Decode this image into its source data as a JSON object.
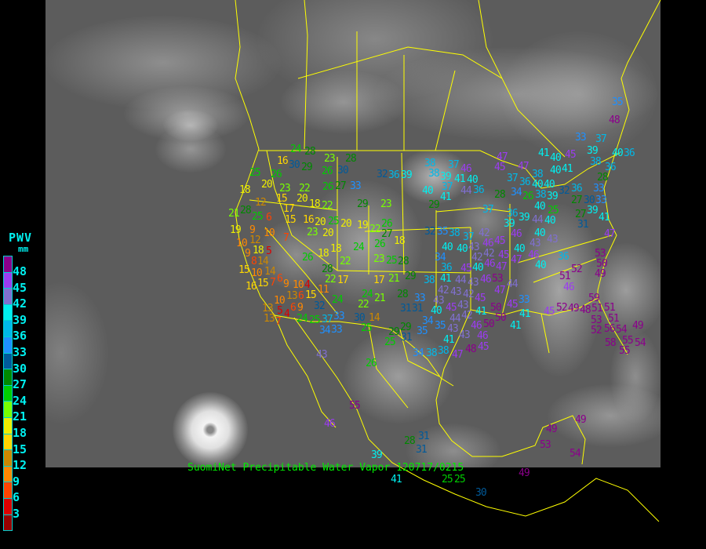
{
  "caption": "SuomiNet Precipitable Water Vapor 120717/0215",
  "legend": {
    "title": "PWV",
    "unit": "mm",
    "labels": [
      "48",
      "45",
      "42",
      "39",
      "36",
      "33",
      "30",
      "27",
      "24",
      "21",
      "18",
      "15",
      "12",
      "9",
      "6",
      "3"
    ],
    "colors": [
      "#8b008b",
      "#9b3cf0",
      "#8070d0",
      "#00f0f0",
      "#00b8e8",
      "#1e90ff",
      "#005a9a",
      "#008800",
      "#00cc00",
      "#77ff00",
      "#eeee00",
      "#ffd700",
      "#cc8800",
      "#ff8800",
      "#ff4400",
      "#dd0000",
      "#990000"
    ]
  },
  "map": {
    "border_color": "#ffff00",
    "background": "infrared satellite image",
    "features": [
      "hurricane-off-baja"
    ]
  },
  "stations": [
    "16",
    "30",
    "29",
    "24",
    "28",
    "23",
    "28",
    "26",
    "30",
    "25",
    "26",
    "20",
    "18",
    "23",
    "22",
    "26",
    "27",
    "33",
    "32",
    "36",
    "39",
    "15",
    "20",
    "12",
    "17",
    "18",
    "22",
    "29",
    "23",
    "21",
    "28",
    "25",
    "6",
    "15",
    "16",
    "20",
    "25",
    "20",
    "19",
    "22",
    "26",
    "27",
    "19",
    "9",
    "10",
    "23",
    "20",
    "7",
    "12",
    "18",
    "26",
    "24",
    "10",
    "18",
    "18",
    "9",
    "14",
    "5",
    "8",
    "26",
    "18",
    "22",
    "23",
    "25",
    "28",
    "15",
    "10",
    "14",
    "28",
    "22",
    "17",
    "17",
    "21",
    "29",
    "15",
    "16",
    "7",
    "6",
    "9",
    "10",
    "4",
    "11",
    "15",
    "6",
    "13",
    "24",
    "24",
    "21",
    "28",
    "10",
    "32",
    "22",
    "31",
    "13",
    "5",
    "4",
    "6",
    "9",
    "24",
    "13",
    "7",
    "25",
    "37",
    "34",
    "33",
    "30",
    "14",
    "33",
    "25",
    "29",
    "38",
    "37",
    "46",
    "38",
    "39",
    "37",
    "41",
    "40",
    "44",
    "36",
    "40",
    "41",
    "29",
    "45",
    "47",
    "47",
    "41",
    "45",
    "39",
    "38",
    "40",
    "37",
    "36",
    "38",
    "40",
    "40",
    "41",
    "36",
    "28",
    "33",
    "28",
    "34",
    "26",
    "38",
    "40",
    "39",
    "32",
    "40",
    "36",
    "27",
    "30",
    "33",
    "25",
    "37",
    "36",
    "39",
    "27",
    "39",
    "39",
    "44",
    "40",
    "31",
    "41",
    "32",
    "35",
    "38",
    "37",
    "42",
    "46",
    "40",
    "43",
    "43",
    "47",
    "45",
    "46",
    "43",
    "40",
    "40",
    "42",
    "42",
    "40",
    "45",
    "47",
    "46",
    "36",
    "53",
    "50",
    "34",
    "36",
    "40",
    "46",
    "47",
    "40",
    "52",
    "49",
    "51",
    "46",
    "38",
    "41",
    "44",
    "43",
    "45",
    "46",
    "53",
    "44",
    "47",
    "42",
    "43",
    "42",
    "33",
    "43",
    "40",
    "45",
    "43",
    "45",
    "31",
    "44",
    "42",
    "41",
    "50",
    "50",
    "45",
    "33",
    "41",
    "34",
    "35",
    "35",
    "43",
    "46",
    "50",
    "43",
    "41",
    "46",
    "41",
    "29",
    "31",
    "34",
    "38",
    "38",
    "47",
    "48",
    "45",
    "45",
    "52",
    "49",
    "48",
    "51",
    "51",
    "53",
    "51",
    "59",
    "52",
    "56",
    "54",
    "55",
    "49",
    "58",
    "55",
    "54",
    "43",
    "55",
    "46",
    "28",
    "31",
    "31",
    "39",
    "41",
    "25",
    "25",
    "49",
    "30",
    "49",
    "49",
    "53",
    "54",
    "35",
    "33",
    "37",
    "36",
    "48",
    "40",
    "26",
    "25"
  ]
}
